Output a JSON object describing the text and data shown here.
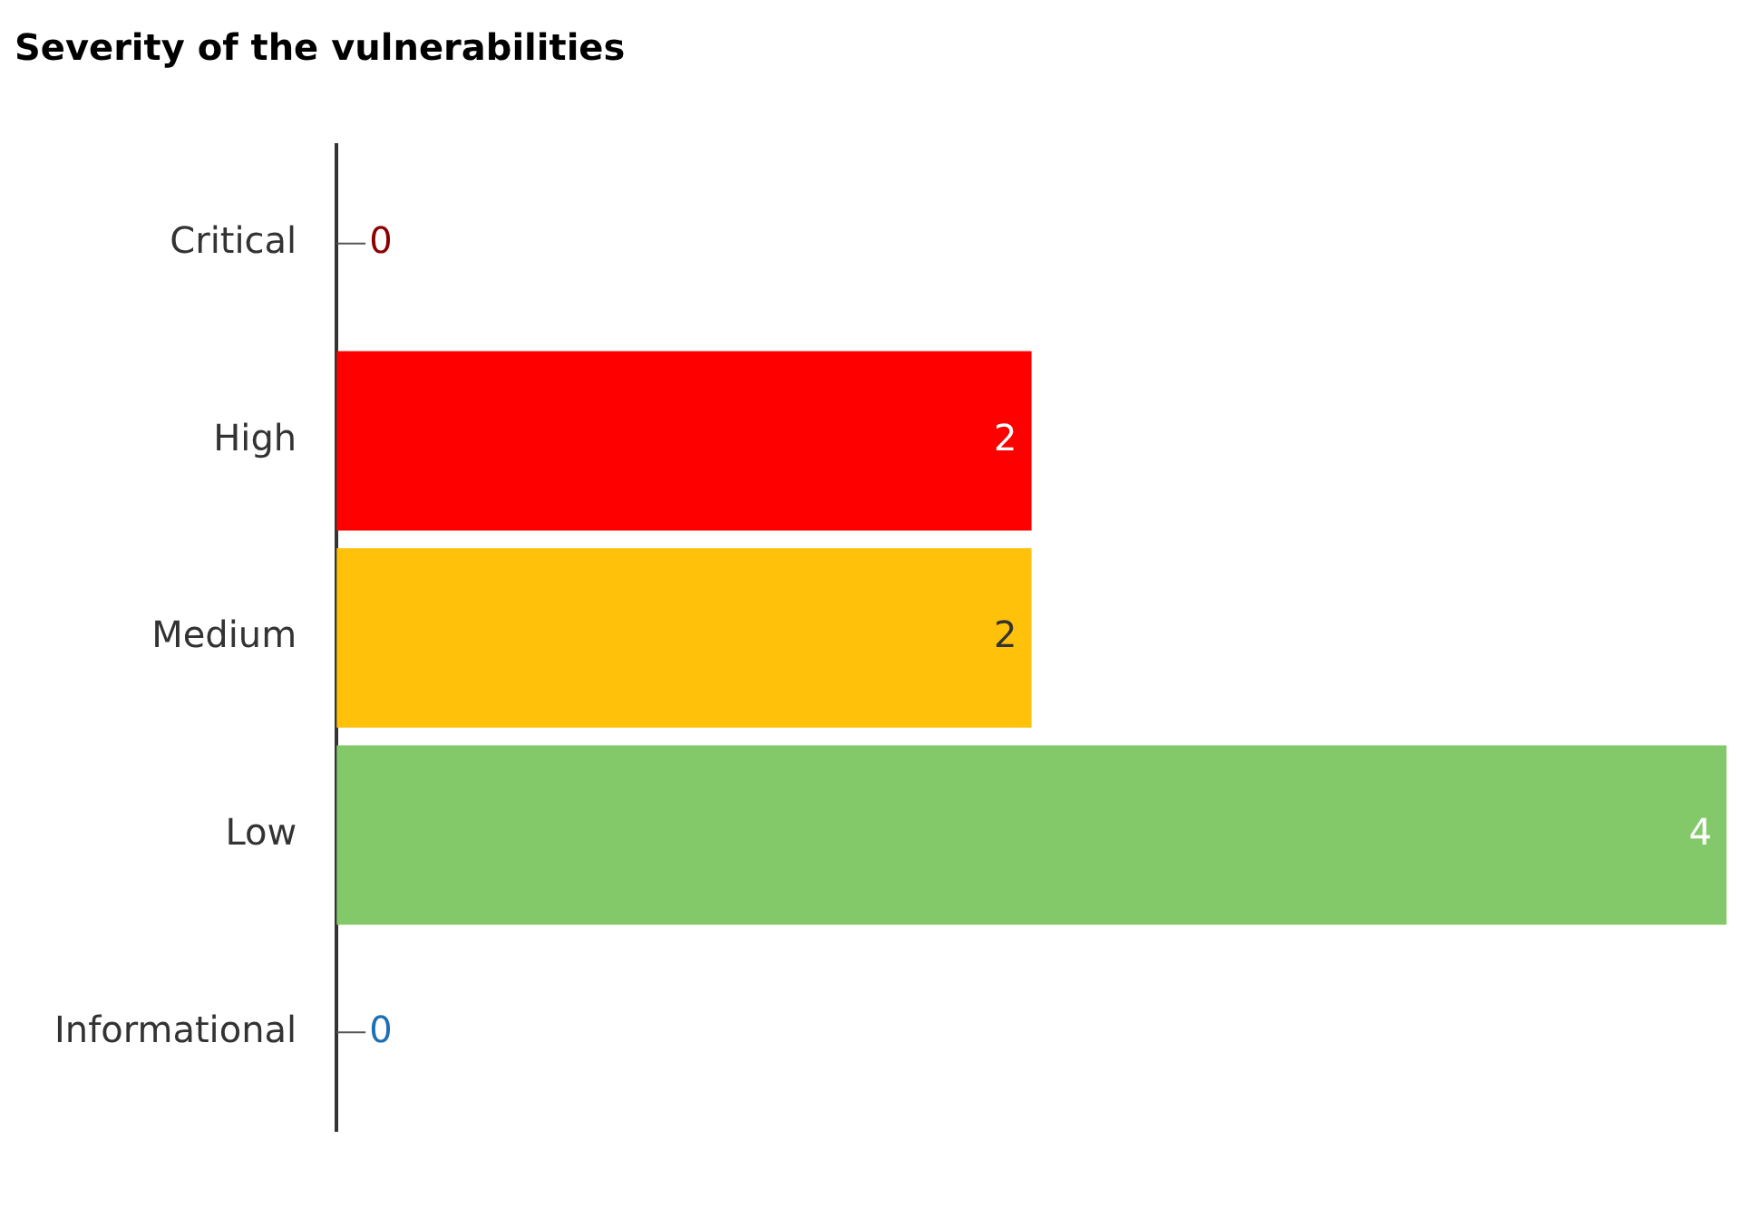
{
  "chart_data": {
    "type": "bar",
    "orientation": "horizontal",
    "title": "Severity of the vulnerabilities",
    "categories": [
      "Critical",
      "High",
      "Medium",
      "Low",
      "Informational"
    ],
    "values": [
      0,
      2,
      2,
      4,
      0
    ],
    "colors": [
      "#8b0000",
      "#ff0000",
      "#ffc10a",
      "#83c96a",
      "#1f6fb4"
    ],
    "data_labels": true,
    "grid": false,
    "legend": false
  }
}
